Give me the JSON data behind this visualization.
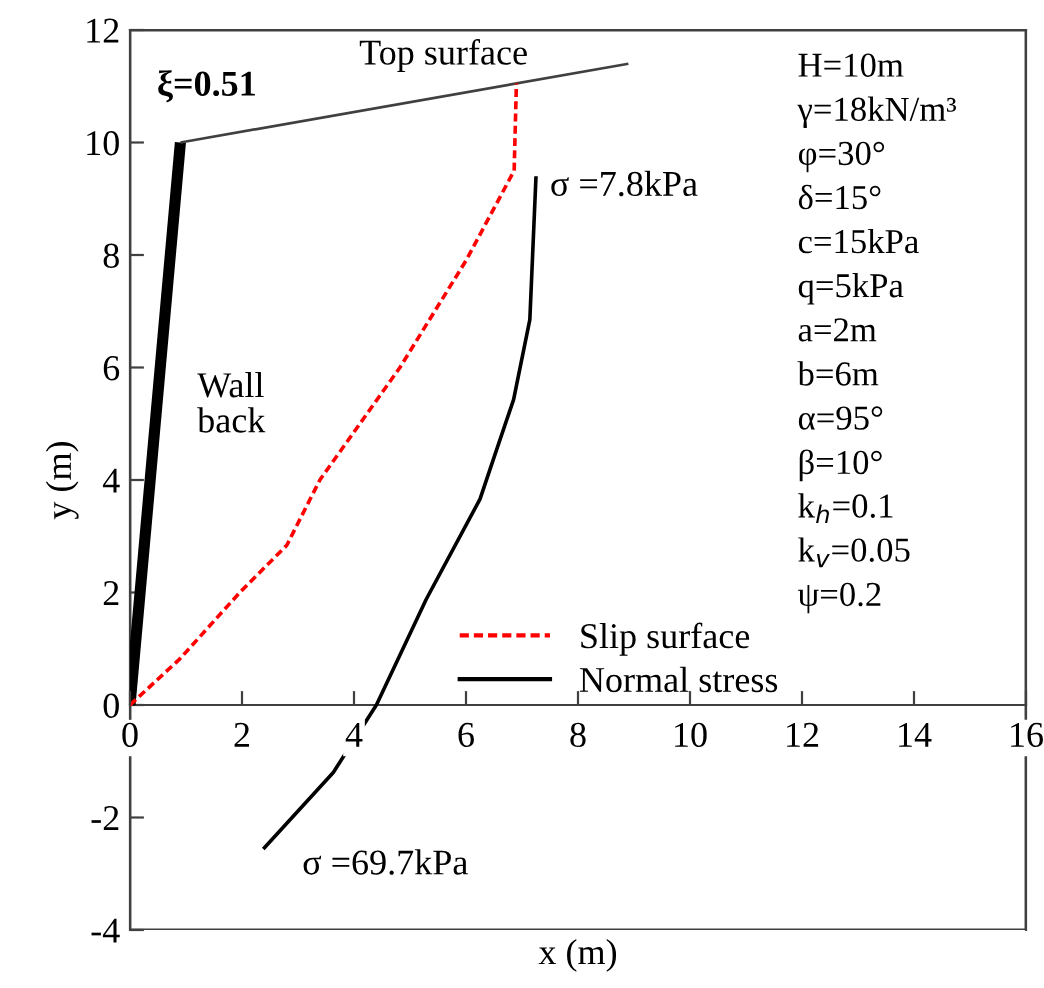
{
  "chart_data": {
    "type": "line",
    "xlabel": "x (m)",
    "ylabel": "y (m)",
    "xlim": [
      0,
      16
    ],
    "xticks": [
      0,
      2,
      4,
      6,
      8,
      10,
      12,
      14,
      16
    ],
    "ylim": [
      -4,
      12
    ],
    "yticks": [
      -4,
      -2,
      0,
      2,
      4,
      6,
      8,
      10,
      12
    ],
    "grid": false,
    "legend": "lower right",
    "marker": "none",
    "series": [
      {
        "color": "#000000",
        "line_style": "solid",
        "x": [
          0,
          0.9
        ],
        "values": [
          0,
          10
        ]
      },
      {
        "color": "#404040",
        "line_style": "solid",
        "x": [
          0.9,
          8.9
        ],
        "values": [
          10,
          11.4
        ]
      },
      {
        "name": "Slip surface",
        "color": "#ff0000",
        "line_style": "dashed",
        "x": [
          0,
          0.89,
          1.96,
          2.8,
          3.39,
          4.82,
          6.0,
          6.86,
          6.9
        ],
        "values": [
          0,
          0.82,
          2.0,
          2.84,
          4.0,
          6.0,
          7.9,
          9.5,
          11.05
        ]
      },
      {
        "name": "Normal stress",
        "color": "#000000",
        "line_style": "solid",
        "x": [
          2.38,
          3.63,
          4.4,
          5.29,
          6.25,
          6.49,
          6.85,
          7.14,
          7.25
        ],
        "values": [
          -2.56,
          -1.2,
          0,
          1.88,
          3.66,
          4.37,
          5.43,
          6.85,
          9.4
        ]
      }
    ],
    "annotations": [
      "ξ=0.51",
      "Top surface",
      "Wall\nback",
      {
        "text": "σ =7.8kPa",
        "x": 7.25,
        "y": 9.4
      },
      {
        "text": "σ =69.7kPa",
        "x": 2.38,
        "y": -2.56
      },
      "H=10m",
      "γ=18kN/m³",
      "φ=30°",
      "δ=15°",
      "c=15kPa",
      "q=5kPa",
      "a=2m",
      "b=6m",
      "α=95°",
      "β=10°",
      "k$_{h}$=0.1",
      "k$_{v}$=0.05",
      "ψ=0.2"
    ]
  }
}
